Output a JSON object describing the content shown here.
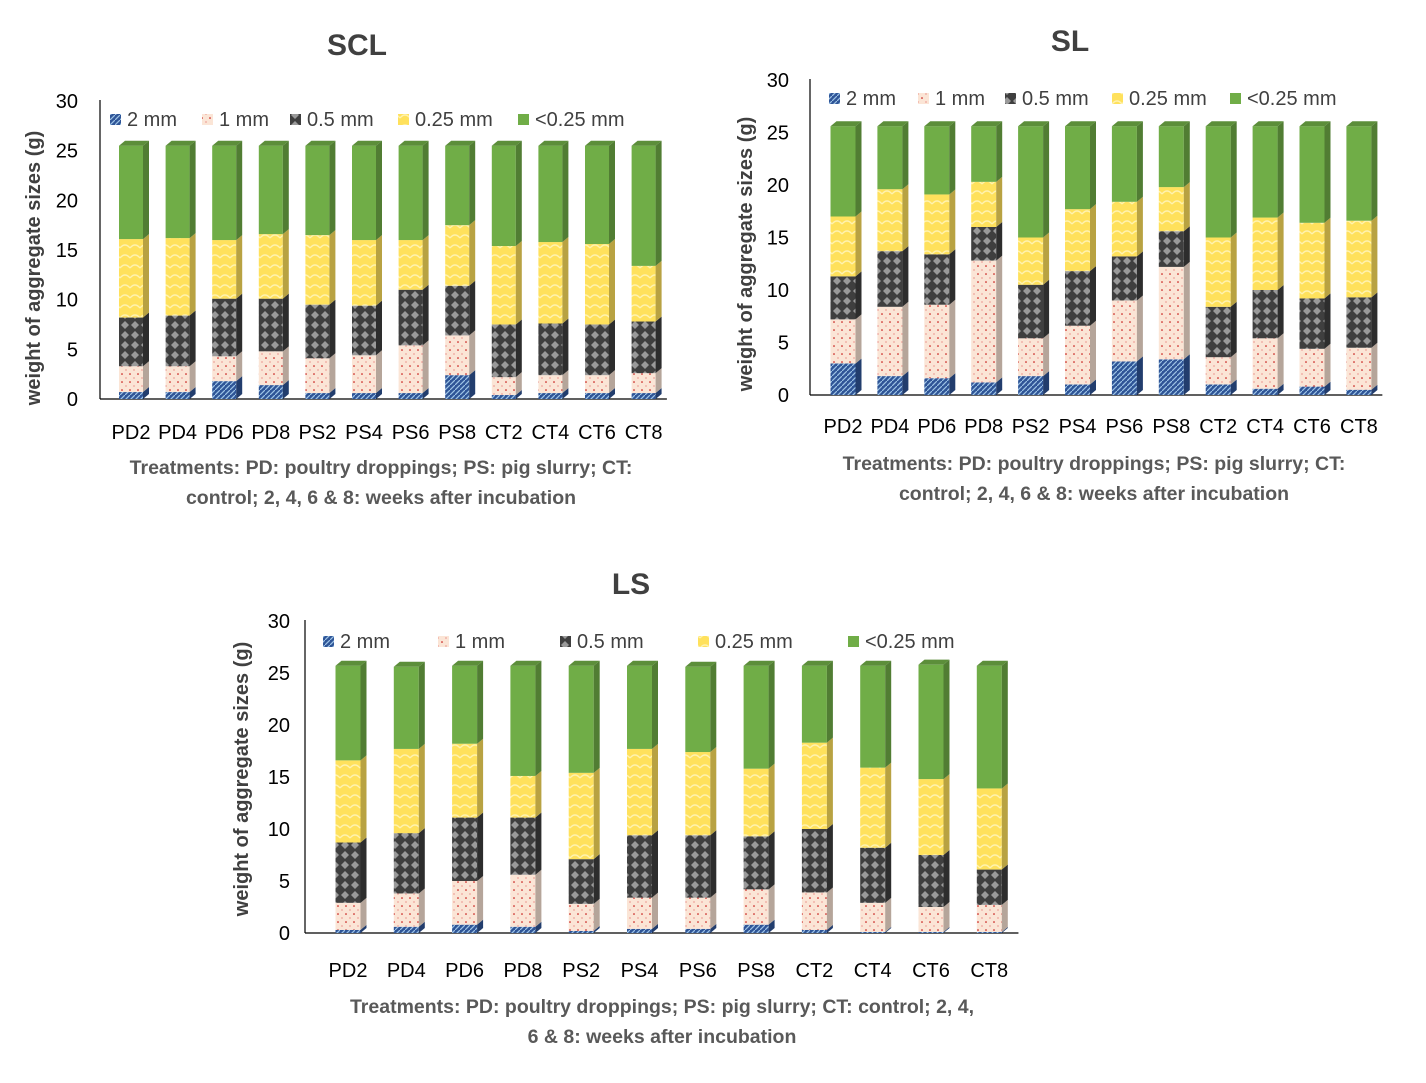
{
  "chart_data": [
    {
      "type": "bar",
      "stacked": true,
      "title": "SCL",
      "ylabel": "weight of aggregate sizes (g)",
      "xlabel_lines": [
        "Treatments: PD: poultry droppings; PS: pig slurry; CT:",
        "control; 2, 4, 6 & 8: weeks after incubation"
      ],
      "ylim": [
        0,
        30
      ],
      "yticks": [
        "0",
        "5",
        "10",
        "15",
        "20",
        "25",
        "30"
      ],
      "legend_position": "top",
      "categories": [
        "PD2",
        "PD4",
        "PD6",
        "PD8",
        "PS2",
        "PS4",
        "PS6",
        "PS8",
        "CT2",
        "CT4",
        "CT6",
        "CT8"
      ],
      "series": [
        {
          "name": "2 mm",
          "color": "#2F5597",
          "values": [
            0.7,
            0.7,
            1.8,
            1.4,
            0.6,
            0.6,
            0.6,
            2.4,
            0.4,
            0.6,
            0.6,
            0.6
          ]
        },
        {
          "name": "1 mm",
          "color": "#FBE5D6",
          "values": [
            2.6,
            2.6,
            2.5,
            3.4,
            3.5,
            3.8,
            4.8,
            4.0,
            1.8,
            1.8,
            1.8,
            2.0
          ]
        },
        {
          "name": "0.5 mm",
          "color": "#3F3F3F",
          "values": [
            4.9,
            5.1,
            5.8,
            5.3,
            5.4,
            5.0,
            5.6,
            5.0,
            5.3,
            5.2,
            5.1,
            5.2
          ]
        },
        {
          "name": "0.25 mm",
          "color": "#FFE15C",
          "values": [
            7.9,
            7.8,
            5.9,
            6.5,
            7.0,
            6.6,
            5.0,
            6.1,
            7.9,
            8.2,
            8.1,
            5.6
          ]
        },
        {
          "name": "<0.25 mm",
          "color": "#70AD47",
          "values": [
            9.4,
            9.3,
            9.5,
            8.9,
            9.0,
            9.5,
            9.5,
            8.0,
            10.1,
            9.7,
            9.9,
            12.1
          ]
        }
      ]
    },
    {
      "type": "bar",
      "stacked": true,
      "title": "SL",
      "ylabel": "weight of aggregate sizes (g)",
      "xlabel_lines": [
        "Treatments: PD: poultry droppings; PS: pig slurry; CT:",
        "control; 2, 4, 6 & 8: weeks after incubation"
      ],
      "ylim": [
        0,
        30
      ],
      "yticks": [
        "0",
        "5",
        "10",
        "15",
        "20",
        "25",
        "30"
      ],
      "legend_position": "top",
      "categories": [
        "PD2",
        "PD4",
        "PD6",
        "PD8",
        "PS2",
        "PS4",
        "PS6",
        "PS8",
        "CT2",
        "CT4",
        "CT6",
        "CT8"
      ],
      "series": [
        {
          "name": "2 mm",
          "color": "#2F5597",
          "values": [
            3.0,
            1.8,
            1.6,
            1.2,
            1.8,
            1.0,
            3.2,
            3.4,
            1.0,
            0.6,
            0.8,
            0.5
          ]
        },
        {
          "name": "1 mm",
          "color": "#FBE5D6",
          "values": [
            4.2,
            6.6,
            7.0,
            11.6,
            3.6,
            5.6,
            5.8,
            8.8,
            2.6,
            4.8,
            3.6,
            4.0
          ]
        },
        {
          "name": "0.5 mm",
          "color": "#3F3F3F",
          "values": [
            4.1,
            5.3,
            4.8,
            3.2,
            5.1,
            5.2,
            4.2,
            3.4,
            4.8,
            4.6,
            4.8,
            4.8
          ]
        },
        {
          "name": "0.25 mm",
          "color": "#FFE15C",
          "values": [
            5.7,
            5.9,
            5.7,
            4.3,
            4.5,
            5.9,
            5.2,
            4.2,
            6.6,
            6.9,
            7.2,
            7.3
          ]
        },
        {
          "name": "<0.25 mm",
          "color": "#70AD47",
          "values": [
            8.6,
            6.0,
            6.5,
            5.3,
            10.6,
            7.9,
            7.2,
            5.8,
            10.6,
            8.7,
            9.2,
            9.0
          ]
        }
      ]
    },
    {
      "type": "bar",
      "stacked": true,
      "title": "LS",
      "ylabel": "weight of aggregate sizes (g)",
      "xlabel_lines": [
        "Treatments: PD: poultry droppings; PS: pig slurry; CT: control; 2, 4,",
        "6 & 8: weeks after incubation"
      ],
      "ylim": [
        0,
        30
      ],
      "yticks": [
        "0",
        "5",
        "10",
        "15",
        "20",
        "25",
        "30"
      ],
      "legend_position": "top",
      "categories": [
        "PD2",
        "PD4",
        "PD6",
        "PD8",
        "PS2",
        "PS4",
        "PS6",
        "PS8",
        "CT2",
        "CT4",
        "CT6",
        "CT8"
      ],
      "series": [
        {
          "name": "2 mm",
          "color": "#2F5597",
          "values": [
            0.3,
            0.6,
            0.8,
            0.6,
            0.2,
            0.4,
            0.4,
            0.8,
            0.3,
            0.1,
            0.1,
            0.1
          ]
        },
        {
          "name": "1 mm",
          "color": "#FBE5D6",
          "values": [
            2.6,
            3.2,
            4.2,
            5.0,
            2.6,
            3.0,
            3.0,
            3.4,
            3.6,
            2.8,
            2.4,
            2.6
          ]
        },
        {
          "name": "0.5 mm",
          "color": "#3F3F3F",
          "values": [
            5.8,
            5.8,
            6.1,
            5.5,
            4.3,
            6.0,
            6.0,
            5.1,
            6.1,
            5.3,
            5.0,
            3.4
          ]
        },
        {
          "name": "0.25 mm",
          "color": "#FFE15C",
          "values": [
            7.9,
            8.1,
            7.1,
            4.0,
            8.3,
            8.3,
            8.0,
            6.5,
            8.3,
            7.7,
            7.3,
            7.8
          ]
        },
        {
          "name": "<0.25 mm",
          "color": "#70AD47",
          "values": [
            9.1,
            7.9,
            7.5,
            10.6,
            10.3,
            8.0,
            8.2,
            9.9,
            7.4,
            9.8,
            11.0,
            11.8
          ]
        }
      ]
    }
  ]
}
